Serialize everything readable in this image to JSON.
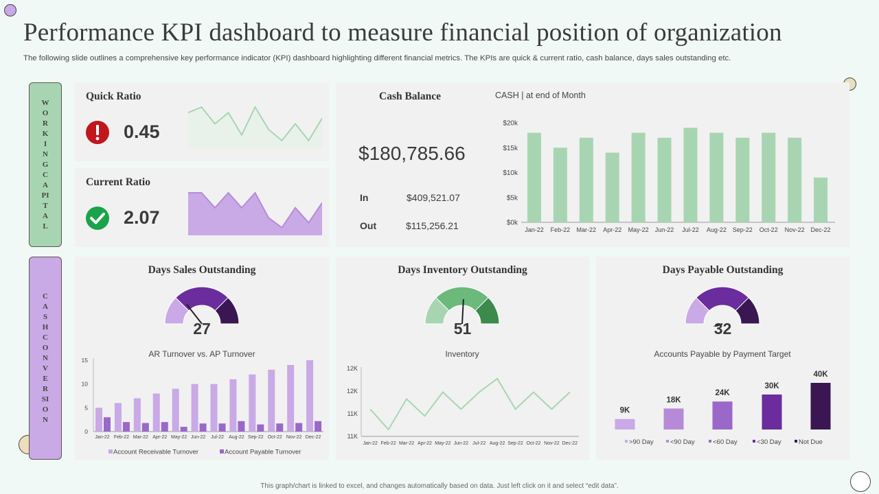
{
  "header": {
    "title": "Performance KPI dashboard to measure financial position of organization",
    "subtitle": "The following slide outlines a comprehensive key performance indicator (KPI) dashboard highlighting different financial metrics. The KPIs are quick & current ratio, cash balance, days sales outstanding etc."
  },
  "footer": {
    "note": "This graph/chart is linked to excel, and changes automatically based on data.  Just left click on it and select “edit data”."
  },
  "sections": {
    "working_capital": "WORKING CAPITAL",
    "cash_conversion": "CASH CONVERSION"
  },
  "quick_ratio": {
    "title": "Quick Ratio",
    "value": "0.45",
    "icon": "alert-icon",
    "icon_color": "#c0161c"
  },
  "current_ratio": {
    "title": "Current Ratio",
    "value": "2.07",
    "icon": "check-icon",
    "icon_color": "#1aa34a"
  },
  "cash_balance": {
    "title": "Cash Balance",
    "amount": "$180,785.66",
    "in_label": "In",
    "in_value": "$409,521.07",
    "out_label": "Out",
    "out_value": "$115,256.21"
  },
  "dso": {
    "title": "Days Sales Outstanding",
    "value": "27"
  },
  "dio": {
    "title": "Days Inventory Outstanding",
    "value": "51"
  },
  "dpo": {
    "title": "Days Payable Outstanding",
    "value": "32"
  },
  "colors": {
    "green_light": "#a8d5b1",
    "green_mid": "#6bb97b",
    "green_dark": "#3c8a4e",
    "purple_light": "#c9a9e6",
    "purple_mid": "#9a68c9",
    "purple_dark": "#6b2c9d",
    "purple_darkest": "#3a1752"
  },
  "chart_data": [
    {
      "id": "quick-ratio-sparkline",
      "type": "area",
      "values": [
        6,
        7,
        4,
        6,
        2,
        7,
        3,
        1,
        4,
        1,
        5
      ]
    },
    {
      "id": "current-ratio-sparkline",
      "type": "area",
      "values": [
        8,
        8,
        5,
        8,
        5,
        8,
        3,
        1,
        5,
        2,
        6
      ]
    },
    {
      "id": "cash",
      "type": "bar",
      "title": "CASH | at end of Month",
      "categories": [
        "Jan-22",
        "Feb-22",
        "Mar-22",
        "Apr-22",
        "May-22",
        "Jun-22",
        "Jul-22",
        "Aug-22",
        "Sep-22",
        "Oct-22",
        "Nov-22",
        "Dec-22"
      ],
      "values": [
        18000,
        15000,
        17000,
        14000,
        18000,
        17000,
        19000,
        18000,
        17000,
        18000,
        17000,
        9000
      ],
      "ylim": [
        0,
        20000
      ],
      "yticks": [
        "$0k",
        "$5k",
        "$10k",
        "$15k",
        "$20k"
      ],
      "grid": false
    },
    {
      "id": "ar-ap",
      "type": "bar",
      "title": "AR Turnover vs. AP Turnover",
      "categories": [
        "Jan-22",
        "Feb-22",
        "Mar-22",
        "Apr-22",
        "May-22",
        "Jun-22",
        "Jul-22",
        "Aug-22",
        "Sep-22",
        "Oct-22",
        "Nov-22",
        "Dec-22"
      ],
      "series": [
        {
          "name": "Account Receivable Turnover",
          "values": [
            5,
            6,
            7,
            8,
            9,
            10,
            10,
            11,
            12,
            13,
            14,
            15
          ]
        },
        {
          "name": "Account Payable Turnover",
          "values": [
            3,
            2,
            1.8,
            2,
            1,
            1.7,
            1.7,
            2.2,
            1.5,
            1.7,
            1.8,
            2.2
          ]
        }
      ],
      "ylim": [
        0,
        15
      ],
      "yticks": [
        "0",
        "5",
        "10",
        "15"
      ],
      "legend": "bottom"
    },
    {
      "id": "inventory",
      "type": "line",
      "title": "Inventory",
      "categories": [
        "Jan-22",
        "Feb-22",
        "Mar-22",
        "Apr-22",
        "May-22",
        "Jun-22",
        "Jul-22",
        "Aug-22",
        "Sep-22",
        "Oct-22",
        "Nov-22",
        "Dec-22"
      ],
      "values": [
        4,
        1,
        5.5,
        3,
        6.5,
        4,
        6.5,
        8.5,
        4,
        6.5,
        4,
        6.5
      ],
      "ylim": [
        0,
        10
      ],
      "yticks": [
        "11K",
        "11K",
        "12K",
        "12K"
      ]
    },
    {
      "id": "payable",
      "type": "bar",
      "title": "Accounts Payable by Payment Target",
      "categories": [
        ">90 Day",
        "<90 Day",
        "<60 Day",
        "<30 Day",
        "Not Due"
      ],
      "labels": [
        "9K",
        "18K",
        "24K",
        "30K",
        "40K"
      ],
      "values": [
        9,
        18,
        24,
        30,
        40
      ],
      "ylim": [
        0,
        40
      ],
      "legend": "bottom"
    }
  ]
}
